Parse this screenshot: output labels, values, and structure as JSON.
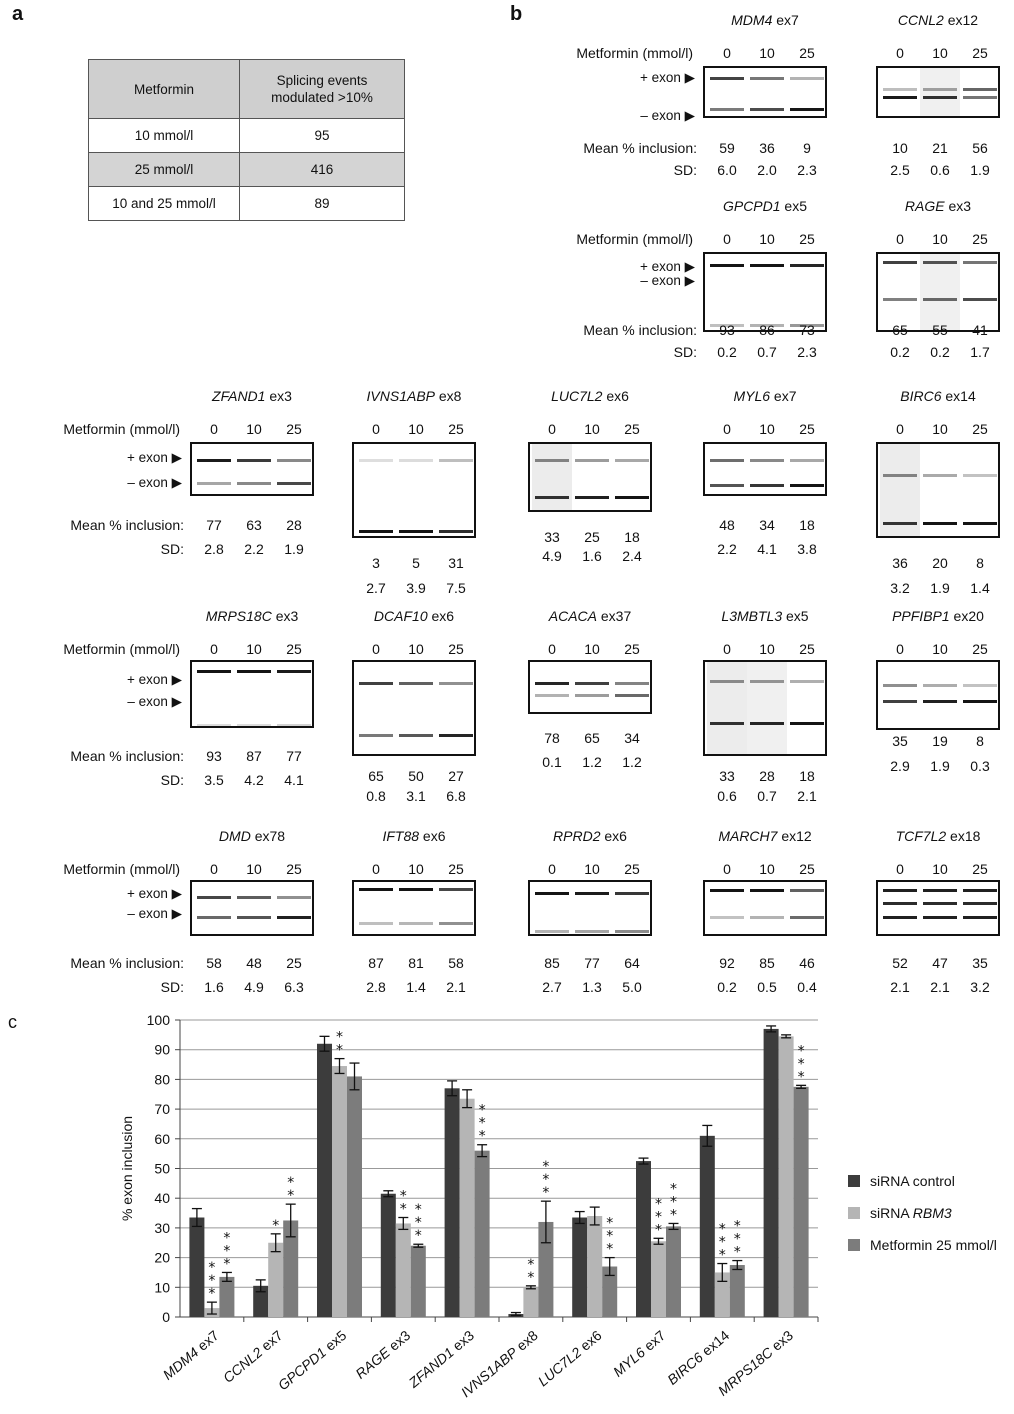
{
  "panel_labels": {
    "a": "a",
    "b": "b",
    "c": "c"
  },
  "table": {
    "headers": [
      "Metformin",
      "Splicing events modulated >10%"
    ],
    "rows": [
      {
        "label": "10 mmol/l",
        "value": "95"
      },
      {
        "label": "25 mmol/l",
        "value": "416"
      },
      {
        "label": "10 and 25 mmol/l",
        "value": "89"
      }
    ]
  },
  "gel_labels": {
    "metformin": "Metformin (mmol/l)",
    "plus_exon": "+ exon",
    "minus_exon": "– exon",
    "mean": "Mean % inclusion:",
    "sd": "SD:",
    "doses": [
      "0",
      "10",
      "25"
    ]
  },
  "gels": [
    {
      "gene": "MDM4",
      "exon": "ex7",
      "mean": [
        "59",
        "36",
        "9"
      ],
      "sd": [
        "6.0",
        "2.0",
        "2.3"
      ]
    },
    {
      "gene": "CCNL2",
      "exon": "ex12",
      "mean": [
        "10",
        "21",
        "56"
      ],
      "sd": [
        "2.5",
        "0.6",
        "1.9"
      ]
    },
    {
      "gene": "GPCPD1",
      "exon": "ex5",
      "mean": [
        "93",
        "86",
        "73"
      ],
      "sd": [
        "0.2",
        "0.7",
        "2.3"
      ]
    },
    {
      "gene": "RAGE",
      "exon": "ex3",
      "mean": [
        "65",
        "55",
        "41"
      ],
      "sd": [
        "0.2",
        "0.2",
        "1.7"
      ]
    },
    {
      "gene": "ZFAND1",
      "exon": "ex3",
      "mean": [
        "77",
        "63",
        "28"
      ],
      "sd": [
        "2.8",
        "2.2",
        "1.9"
      ]
    },
    {
      "gene": "IVNS1ABP",
      "exon": "ex8",
      "mean": [
        "3",
        "5",
        "31"
      ],
      "sd": [
        "2.7",
        "3.9",
        "7.5"
      ]
    },
    {
      "gene": "LUC7L2",
      "exon": "ex6",
      "mean": [
        "33",
        "25",
        "18"
      ],
      "sd": [
        "4.9",
        "1.6",
        "2.4"
      ]
    },
    {
      "gene": "MYL6",
      "exon": "ex7",
      "mean": [
        "48",
        "34",
        "18"
      ],
      "sd": [
        "2.2",
        "4.1",
        "3.8"
      ]
    },
    {
      "gene": "BIRC6",
      "exon": "ex14",
      "mean": [
        "36",
        "20",
        "8"
      ],
      "sd": [
        "3.2",
        "1.9",
        "1.4"
      ]
    },
    {
      "gene": "MRPS18C",
      "exon": "ex3",
      "mean": [
        "93",
        "87",
        "77"
      ],
      "sd": [
        "3.5",
        "4.2",
        "4.1"
      ]
    },
    {
      "gene": "DCAF10",
      "exon": "ex6",
      "mean": [
        "65",
        "50",
        "27"
      ],
      "sd": [
        "0.8",
        "3.1",
        "6.8"
      ]
    },
    {
      "gene": "ACACA",
      "exon": "ex37",
      "mean": [
        "78",
        "65",
        "34"
      ],
      "sd": [
        "0.1",
        "1.2",
        "1.2"
      ]
    },
    {
      "gene": "L3MBTL3",
      "exon": "ex5",
      "mean": [
        "33",
        "28",
        "18"
      ],
      "sd": [
        "0.6",
        "0.7",
        "2.1"
      ]
    },
    {
      "gene": "PPFIBP1",
      "exon": "ex20",
      "mean": [
        "35",
        "19",
        "8"
      ],
      "sd": [
        "2.9",
        "1.9",
        "0.3"
      ]
    },
    {
      "gene": "DMD",
      "exon": "ex78",
      "mean": [
        "58",
        "48",
        "25"
      ],
      "sd": [
        "1.6",
        "4.9",
        "6.3"
      ]
    },
    {
      "gene": "IFT88",
      "exon": "ex6",
      "mean": [
        "87",
        "81",
        "58"
      ],
      "sd": [
        "2.8",
        "1.4",
        "2.1"
      ]
    },
    {
      "gene": "RPRD2",
      "exon": "ex6",
      "mean": [
        "85",
        "77",
        "64"
      ],
      "sd": [
        "2.7",
        "1.3",
        "5.0"
      ]
    },
    {
      "gene": "MARCH7",
      "exon": "ex12",
      "mean": [
        "92",
        "85",
        "46"
      ],
      "sd": [
        "0.2",
        "0.5",
        "0.4"
      ]
    },
    {
      "gene": "TCF7L2",
      "exon": "ex18",
      "mean": [
        "52",
        "47",
        "35"
      ],
      "sd": [
        "2.1",
        "2.1",
        "3.2"
      ]
    }
  ],
  "chart_data": {
    "type": "bar",
    "ylabel": "% exon inclusion",
    "ylim": [
      0,
      100
    ],
    "yticks": [
      0,
      10,
      20,
      30,
      40,
      50,
      60,
      70,
      80,
      90,
      100
    ],
    "grid": true,
    "legend_position": "right",
    "categories": [
      {
        "gene": "MDM4",
        "exon": "ex7"
      },
      {
        "gene": "CCNL2",
        "exon": "ex7"
      },
      {
        "gene": "GPCPD1",
        "exon": "ex5"
      },
      {
        "gene": "RAGE",
        "exon": "ex3"
      },
      {
        "gene": "ZFAND1",
        "exon": "ex3"
      },
      {
        "gene": "IVNS1ABP",
        "exon": "ex8"
      },
      {
        "gene": "LUC7L2",
        "exon": "ex6"
      },
      {
        "gene": "MYL6",
        "exon": "ex7"
      },
      {
        "gene": "BIRC6",
        "exon": "ex14"
      },
      {
        "gene": "MRPS18C",
        "exon": "ex3"
      }
    ],
    "series": [
      {
        "name": "siRNA control",
        "name_plain": "siRNA control",
        "name_italic": "",
        "color": "#3c3c3c",
        "values": [
          33.5,
          10.5,
          92,
          41.5,
          77,
          1,
          33.5,
          52.5,
          61,
          97
        ],
        "errors": [
          3,
          2,
          2.5,
          1,
          2.5,
          0.5,
          2,
          1,
          3.5,
          1
        ],
        "stars": [
          "",
          "",
          "",
          "",
          "",
          "",
          "",
          "",
          "",
          ""
        ]
      },
      {
        "name": "siRNA RBM3",
        "name_plain": "siRNA ",
        "name_italic": "RBM3",
        "color": "#b5b5b5",
        "values": [
          3,
          25,
          84.5,
          31.5,
          73.5,
          10,
          34,
          25.5,
          15,
          94.5
        ],
        "errors": [
          2,
          3,
          2.5,
          2,
          3,
          0.5,
          3,
          1,
          3,
          0.5
        ],
        "stars": [
          "***",
          "*",
          "**",
          "**",
          "",
          "**",
          "",
          "***",
          "***",
          ""
        ]
      },
      {
        "name": "Metformin 25 mmol/l",
        "name_plain": "Metformin 25 mmol/l",
        "name_italic": "",
        "color": "#7c7c7c",
        "values": [
          13.5,
          32.5,
          81,
          24,
          56,
          32,
          17,
          30.5,
          17.5,
          77.5
        ],
        "errors": [
          1.5,
          5.5,
          4.5,
          0.5,
          2,
          7,
          3,
          1,
          1.5,
          0.5
        ],
        "stars": [
          "***",
          "**",
          "",
          "***",
          "***",
          "***",
          "***",
          "***",
          "***",
          "***"
        ]
      }
    ]
  }
}
